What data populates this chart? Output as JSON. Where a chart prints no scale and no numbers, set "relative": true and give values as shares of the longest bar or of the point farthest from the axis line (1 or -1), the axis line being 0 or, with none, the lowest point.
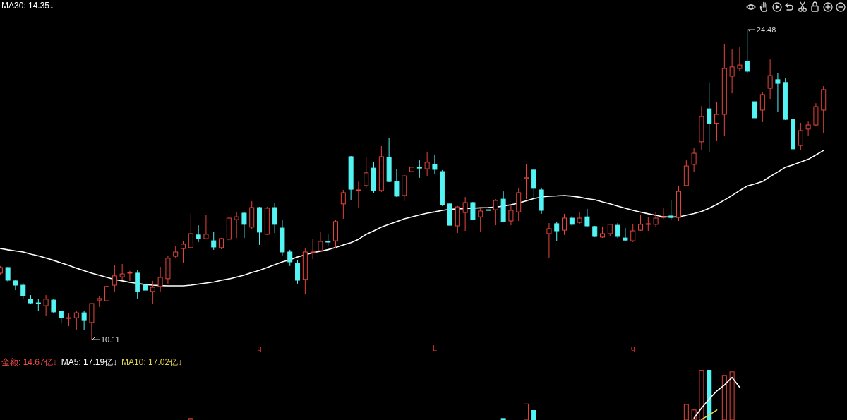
{
  "chart_data": [
    {
      "type": "candlestick",
      "legend": "top left",
      "categories": [
        null,
        null,
        null,
        null,
        null,
        null,
        null,
        null,
        null,
        null,
        null,
        null,
        null,
        null,
        null,
        null,
        null,
        null,
        null,
        null,
        null,
        null,
        null,
        null,
        null,
        null,
        null,
        null,
        null,
        null,
        null,
        null,
        null,
        null,
        "q",
        null,
        null,
        null,
        null,
        null,
        null,
        null,
        null,
        null,
        null,
        null,
        null,
        null,
        null,
        null,
        null,
        null,
        null,
        null,
        null,
        null,
        null,
        "L",
        null,
        null,
        null,
        null,
        null,
        null,
        null,
        null,
        null,
        null,
        null,
        null,
        null,
        null,
        null,
        null,
        null,
        null,
        null,
        null,
        null,
        null,
        null,
        null,
        null,
        "q",
        null,
        null,
        null,
        null,
        null,
        null,
        null,
        null,
        null,
        null,
        null,
        null,
        null,
        null,
        null,
        null,
        null,
        null,
        null,
        null,
        null,
        null,
        null,
        null,
        null
      ],
      "ohlc": [
        [
          13.19,
          13.52,
          13.12,
          13.45
        ],
        [
          13.45,
          13.48,
          12.8,
          12.86
        ],
        [
          12.83,
          12.86,
          12.4,
          12.63
        ],
        [
          12.63,
          12.73,
          11.98,
          12.14
        ],
        [
          11.98,
          12.17,
          11.78,
          11.81
        ],
        [
          11.81,
          11.98,
          11.42,
          11.78
        ],
        [
          11.68,
          12.17,
          11.22,
          11.98
        ],
        [
          11.94,
          11.98,
          11.35,
          11.39
        ],
        [
          11.42,
          11.45,
          10.86,
          11.12
        ],
        [
          11.09,
          11.35,
          10.73,
          11.12
        ],
        [
          11.12,
          11.45,
          10.57,
          11.35
        ],
        [
          11.35,
          11.45,
          10.57,
          10.99
        ],
        [
          10.9,
          11.78,
          10.11,
          11.78
        ],
        [
          11.94,
          12.11,
          11.62,
          12.01
        ],
        [
          11.91,
          12.7,
          11.85,
          12.57
        ],
        [
          12.63,
          13.58,
          12.34,
          13.06
        ],
        [
          13.02,
          13.61,
          12.86,
          13.15
        ],
        [
          13.19,
          13.29,
          12.83,
          13.22
        ],
        [
          13.19,
          13.35,
          12.01,
          12.34
        ],
        [
          12.63,
          12.96,
          12.34,
          12.4
        ],
        [
          12.34,
          12.83,
          11.75,
          12.53
        ],
        [
          12.57,
          13.48,
          12.34,
          12.99
        ],
        [
          12.93,
          14.01,
          12.7,
          13.88
        ],
        [
          13.97,
          14.46,
          13.91,
          14.17
        ],
        [
          14.33,
          14.69,
          13.68,
          14.53
        ],
        [
          14.37,
          15.94,
          14.33,
          15.02
        ],
        [
          14.96,
          15.41,
          14.63,
          14.79
        ],
        [
          14.79,
          15.87,
          14.76,
          14.99
        ],
        [
          14.69,
          15.12,
          14.27,
          14.4
        ],
        [
          14.37,
          14.82,
          14.3,
          14.79
        ],
        [
          14.76,
          15.77,
          14.66,
          15.74
        ],
        [
          15.67,
          16.03,
          14.82,
          15.8
        ],
        [
          15.97,
          16.03,
          14.82,
          15.45
        ],
        [
          15.32,
          16.53,
          15.22,
          16.23
        ],
        [
          16.23,
          16.26,
          14.5,
          15.09
        ],
        [
          14.99,
          16.26,
          14.96,
          16.2
        ],
        [
          16.23,
          16.46,
          15.05,
          15.45
        ],
        [
          15.28,
          15.64,
          14.01,
          14.17
        ],
        [
          14.17,
          14.27,
          13.52,
          13.71
        ],
        [
          13.64,
          13.81,
          12.7,
          12.86
        ],
        [
          12.9,
          14.33,
          12.2,
          14.17
        ],
        [
          14.14,
          14.76,
          13.84,
          14.17
        ],
        [
          14.23,
          15.09,
          14.17,
          14.66
        ],
        [
          14.66,
          14.99,
          14.46,
          14.63
        ],
        [
          14.69,
          15.64,
          14.33,
          15.58
        ],
        [
          16.4,
          17.05,
          15.71,
          16.92
        ],
        [
          18.59,
          18.62,
          16.59,
          17.08
        ],
        [
          17.02,
          17.44,
          16.2,
          17.05
        ],
        [
          17.25,
          18.56,
          17.12,
          17.84
        ],
        [
          18.06,
          18.36,
          16.92,
          17.02
        ],
        [
          17.02,
          19.08,
          16.95,
          18.59
        ],
        [
          18.56,
          19.44,
          17.41,
          17.44
        ],
        [
          17.44,
          18.0,
          16.72,
          16.76
        ],
        [
          16.79,
          17.74,
          16.53,
          17.7
        ],
        [
          17.9,
          18.95,
          17.77,
          18.1
        ],
        [
          18.1,
          18.42,
          17.61,
          18.06
        ],
        [
          18.03,
          18.82,
          17.67,
          18.33
        ],
        [
          18.23,
          18.69,
          17.8,
          18.0
        ],
        [
          17.9,
          17.97,
          16.3,
          16.36
        ],
        [
          16.4,
          16.46,
          15.32,
          15.41
        ],
        [
          15.38,
          16.3,
          15.05,
          16.26
        ],
        [
          16.0,
          16.72,
          15.15,
          16.46
        ],
        [
          16.46,
          16.49,
          15.64,
          15.67
        ],
        [
          15.8,
          16.26,
          15.09,
          16.07
        ],
        [
          16.13,
          16.2,
          15.64,
          16.1
        ],
        [
          16.13,
          16.62,
          15.41,
          16.56
        ],
        [
          16.62,
          16.98,
          15.54,
          15.58
        ],
        [
          15.61,
          16.36,
          15.41,
          16.1
        ],
        [
          16.03,
          17.12,
          15.61,
          16.92
        ],
        [
          17.57,
          18.26,
          16.62,
          17.61
        ],
        [
          17.97,
          18.03,
          16.69,
          17.12
        ],
        [
          17.05,
          17.12,
          15.94,
          16.1
        ],
        [
          15.02,
          15.51,
          13.88,
          15.25
        ],
        [
          15.48,
          15.58,
          14.66,
          15.15
        ],
        [
          15.18,
          15.94,
          14.96,
          15.74
        ],
        [
          15.74,
          15.84,
          15.38,
          15.45
        ],
        [
          15.54,
          16.0,
          15.48,
          15.74
        ],
        [
          15.8,
          16.17,
          15.32,
          15.38
        ],
        [
          15.35,
          15.38,
          14.86,
          14.89
        ],
        [
          14.86,
          15.35,
          14.82,
          15.02
        ],
        [
          15.02,
          15.48,
          14.92,
          15.45
        ],
        [
          15.41,
          15.51,
          14.82,
          14.89
        ],
        [
          14.82,
          15.28,
          14.69,
          14.72
        ],
        [
          14.69,
          15.48,
          14.63,
          15.15
        ],
        [
          15.18,
          15.87,
          15.15,
          15.45
        ],
        [
          15.45,
          15.8,
          15.15,
          15.48
        ],
        [
          15.45,
          16.03,
          15.32,
          15.74
        ],
        [
          15.77,
          16.2,
          15.71,
          15.8
        ],
        [
          15.84,
          16.56,
          15.67,
          15.77
        ],
        [
          15.77,
          17.25,
          15.61,
          16.98
        ],
        [
          17.25,
          18.42,
          17.21,
          18.16
        ],
        [
          18.23,
          18.98,
          17.87,
          18.75
        ],
        [
          19.28,
          20.94,
          18.88,
          20.45
        ],
        [
          20.81,
          22.03,
          18.82,
          20.14
        ],
        [
          20.14,
          21.11,
          19.31,
          20.55
        ],
        [
          20.55,
          23.82,
          19.54,
          22.68
        ],
        [
          22.32,
          23.56,
          21.53,
          22.75
        ],
        [
          22.68,
          23.66,
          22.58,
          22.84
        ],
        [
          23.01,
          24.48,
          22.48,
          22.55
        ],
        [
          21.14,
          22.52,
          20.29,
          20.39
        ],
        [
          20.75,
          21.6,
          20.19,
          21.47
        ],
        [
          21.76,
          23.1,
          21.27,
          22.35
        ],
        [
          22.16,
          22.48,
          20.65,
          21.99
        ],
        [
          22.03,
          22.25,
          20.29,
          20.32
        ],
        [
          20.32,
          20.42,
          18.91,
          18.95
        ],
        [
          19.11,
          20.16,
          18.88,
          19.8
        ],
        [
          19.87,
          20.22,
          19.54,
          20.06
        ],
        [
          20.06,
          21.07,
          19.99,
          20.91
        ],
        [
          20.75,
          21.86,
          19.7,
          21.7
        ]
      ],
      "colors": [
        "#e8453c",
        "#54f4f4",
        "#54f4f4",
        "#54f4f4",
        "#54f4f4",
        "#54f4f4",
        "#e8453c",
        "#54f4f4",
        "#54f4f4",
        "#e8453c",
        "#e8453c",
        "#54f4f4",
        "#e8453c",
        "#e8453c",
        "#e8453c",
        "#e8453c",
        "#e8453c",
        "#e8453c",
        "#54f4f4",
        "#54f4f4",
        "#e8453c",
        "#e8453c",
        "#e8453c",
        "#e8453c",
        "#e8453c",
        "#e8453c",
        "#54f4f4",
        "#e8453c",
        "#54f4f4",
        "#e8453c",
        "#e8453c",
        "#e8453c",
        "#54f4f4",
        "#e8453c",
        "#54f4f4",
        "#e8453c",
        "#54f4f4",
        "#54f4f4",
        "#54f4f4",
        "#54f4f4",
        "#e8453c",
        "#e8453c",
        "#e8453c",
        "#54f4f4",
        "#e8453c",
        "#e8453c",
        "#54f4f4",
        "#e8453c",
        "#e8453c",
        "#54f4f4",
        "#e8453c",
        "#54f4f4",
        "#54f4f4",
        "#e8453c",
        "#e8453c",
        "#54f4f4",
        "#e8453c",
        "#54f4f4",
        "#54f4f4",
        "#54f4f4",
        "#e8453c",
        "#e8453c",
        "#54f4f4",
        "#e8453c",
        "#54f4f4",
        "#e8453c",
        "#54f4f4",
        "#e8453c",
        "#e8453c",
        "#e8453c",
        "#54f4f4",
        "#54f4f4",
        "#e8453c",
        "#54f4f4",
        "#e8453c",
        "#54f4f4",
        "#e8453c",
        "#54f4f4",
        "#54f4f4",
        "#e8453c",
        "#e8453c",
        "#54f4f4",
        "#54f4f4",
        "#e8453c",
        "#e8453c",
        "#e8453c",
        "#e8453c",
        "#e8453c",
        "#54f4f4",
        "#e8453c",
        "#e8453c",
        "#e8453c",
        "#e8453c",
        "#54f4f4",
        "#e8453c",
        "#e8453c",
        "#e8453c",
        "#e8453c",
        "#54f4f4",
        "#54f4f4",
        "#e8453c",
        "#e8453c",
        "#54f4f4",
        "#54f4f4",
        "#54f4f4",
        "#e8453c",
        "#e8453c",
        "#e8453c",
        "#e8453c"
      ],
      "series": [
        {
          "type": "line",
          "name": "MA30: 14.35↓",
          "color": "#ffffff",
          "values": [
            14.33,
            14.27,
            14.22,
            14.17,
            14.07,
            13.99,
            13.89,
            13.78,
            13.66,
            13.55,
            13.42,
            13.3,
            13.19,
            13.09,
            12.99,
            12.89,
            12.83,
            12.76,
            12.71,
            12.66,
            12.63,
            12.61,
            12.6,
            12.6,
            12.6,
            12.63,
            12.68,
            12.73,
            12.78,
            12.86,
            12.92,
            13.01,
            13.1,
            13.22,
            13.32,
            13.45,
            13.58,
            13.71,
            13.81,
            13.94,
            14.04,
            14.14,
            14.2,
            14.28,
            14.38,
            14.5,
            14.6,
            14.76,
            14.99,
            15.15,
            15.32,
            15.45,
            15.58,
            15.71,
            15.8,
            15.89,
            15.97,
            16.03,
            16.1,
            16.15,
            16.17,
            16.18,
            16.2,
            16.22,
            16.23,
            16.25,
            16.3,
            16.36,
            16.44,
            16.54,
            16.65,
            16.72,
            16.76,
            16.77,
            16.79,
            16.76,
            16.71,
            16.64,
            16.59,
            16.49,
            16.4,
            16.3,
            16.2,
            16.1,
            16.02,
            15.94,
            15.87,
            15.8,
            15.79,
            15.8,
            15.87,
            15.95,
            16.05,
            16.2,
            16.38,
            16.58,
            16.79,
            17.02,
            17.23,
            17.33,
            17.44,
            17.67,
            17.88,
            18.1,
            18.21,
            18.34,
            18.47,
            18.67,
            18.88
          ]
        }
      ],
      "annotations": [
        "10.11",
        "24.48"
      ]
    },
    {
      "type": "bar",
      "relative": true,
      "legend": "top left",
      "categories": [
        null,
        null,
        null,
        null,
        null,
        null,
        null,
        null,
        null,
        null,
        null,
        null,
        null,
        null,
        null,
        null,
        null,
        null,
        null,
        null,
        null,
        null,
        null,
        null,
        null,
        null,
        null,
        null,
        null,
        null,
        null,
        null,
        null,
        null,
        null,
        null,
        null,
        null,
        null,
        null,
        null,
        null,
        null,
        null,
        null,
        null,
        null,
        null,
        null,
        null,
        null,
        null,
        null,
        null,
        null,
        null,
        null,
        null,
        null,
        null,
        null,
        null,
        null,
        null,
        null,
        null,
        null,
        null,
        null,
        null,
        null,
        null,
        null,
        null,
        null,
        null,
        null,
        null,
        null,
        null,
        null,
        null,
        null,
        null,
        null,
        null,
        null,
        null,
        null,
        null,
        null,
        null,
        null,
        null,
        null,
        null,
        null,
        null,
        null,
        null,
        null,
        null,
        null,
        null,
        null,
        null,
        null,
        null,
        null
      ],
      "series": [
        {
          "name": "金额: 14.67亿↓",
          "color": "#f04a44",
          "values": [
            null,
            null,
            null,
            null,
            null,
            null,
            null,
            null,
            null,
            null,
            null,
            null,
            null,
            null,
            null,
            null,
            null,
            null,
            null,
            null,
            null,
            null,
            null,
            null,
            null,
            0.03,
            null,
            null,
            null,
            null,
            null,
            null,
            null,
            null,
            null,
            null,
            null,
            null,
            null,
            null,
            null,
            null,
            null,
            null,
            null,
            null,
            null,
            null,
            null,
            null,
            null,
            null,
            null,
            null,
            null,
            null,
            null,
            null,
            null,
            null,
            null,
            null,
            null,
            null,
            null,
            null,
            0.03,
            null,
            null,
            0.32,
            0.19,
            null,
            null,
            null,
            null,
            null,
            null,
            null,
            null,
            null,
            null,
            null,
            null,
            null,
            null,
            null,
            null,
            null,
            null,
            null,
            0.31,
            0.2,
            0.99,
            1,
            null,
            0.89,
            0.96,
            null,
            null,
            null,
            null,
            null,
            null,
            null,
            null,
            null,
            null,
            null,
            null
          ],
          "colors": [
            null,
            null,
            null,
            null,
            null,
            null,
            null,
            null,
            null,
            null,
            null,
            null,
            null,
            null,
            null,
            null,
            null,
            null,
            null,
            null,
            null,
            null,
            null,
            null,
            null,
            "#e8453c",
            null,
            null,
            null,
            null,
            null,
            null,
            null,
            null,
            null,
            null,
            null,
            null,
            null,
            null,
            null,
            null,
            null,
            null,
            null,
            null,
            null,
            null,
            null,
            null,
            null,
            null,
            null,
            null,
            null,
            null,
            null,
            null,
            null,
            null,
            null,
            null,
            null,
            null,
            null,
            null,
            "#54f4f4",
            null,
            null,
            "#e8453c",
            "#54f4f4",
            null,
            null,
            null,
            null,
            null,
            null,
            null,
            null,
            null,
            null,
            null,
            null,
            null,
            null,
            null,
            null,
            null,
            null,
            null,
            "#e8453c",
            "#e8453c",
            "#e8453c",
            "#54f4f4",
            null,
            "#e8453c",
            "#e8453c",
            null,
            null,
            null,
            null,
            null,
            null,
            null,
            null,
            null,
            null,
            null,
            null
          ]
        },
        {
          "type": "line",
          "name": "MA5: 17.19亿↓",
          "color": "#ffffff",
          "values": [
            null,
            null,
            null,
            null,
            null,
            null,
            null,
            null,
            null,
            null,
            null,
            null,
            null,
            null,
            null,
            null,
            null,
            null,
            null,
            null,
            null,
            null,
            null,
            null,
            null,
            null,
            null,
            null,
            null,
            null,
            null,
            null,
            null,
            null,
            null,
            null,
            null,
            null,
            null,
            null,
            null,
            null,
            null,
            null,
            null,
            null,
            null,
            null,
            null,
            null,
            null,
            null,
            null,
            null,
            null,
            null,
            null,
            null,
            null,
            null,
            null,
            null,
            null,
            null,
            null,
            null,
            null,
            null,
            null,
            null,
            null,
            null,
            null,
            null,
            null,
            null,
            null,
            null,
            null,
            null,
            null,
            null,
            null,
            null,
            null,
            null,
            null,
            null,
            null,
            null,
            null,
            0.04,
            0.24,
            0.42,
            0.58,
            0.7,
            0.85,
            0.65,
            null,
            null,
            null,
            null,
            null,
            null,
            null,
            null,
            null,
            null,
            null
          ]
        },
        {
          "type": "line",
          "name": "MA10: 17.02亿↓",
          "color": "#e8d84c",
          "values": [
            null,
            null,
            null,
            null,
            null,
            null,
            null,
            null,
            null,
            null,
            null,
            null,
            null,
            null,
            null,
            null,
            null,
            null,
            null,
            null,
            null,
            null,
            null,
            null,
            null,
            null,
            null,
            null,
            null,
            null,
            null,
            null,
            null,
            null,
            null,
            null,
            null,
            null,
            null,
            null,
            null,
            null,
            null,
            null,
            null,
            null,
            null,
            null,
            null,
            null,
            null,
            null,
            null,
            null,
            null,
            null,
            null,
            null,
            null,
            null,
            null,
            null,
            null,
            null,
            null,
            null,
            null,
            null,
            null,
            null,
            null,
            null,
            null,
            null,
            null,
            null,
            null,
            null,
            null,
            null,
            null,
            null,
            null,
            null,
            null,
            null,
            null,
            null,
            null,
            null,
            null,
            null,
            0.01,
            0.1,
            0.2,
            null,
            null,
            null,
            null,
            null,
            null,
            null,
            null,
            null,
            null,
            null,
            null,
            null,
            null
          ]
        }
      ]
    }
  ]
}
